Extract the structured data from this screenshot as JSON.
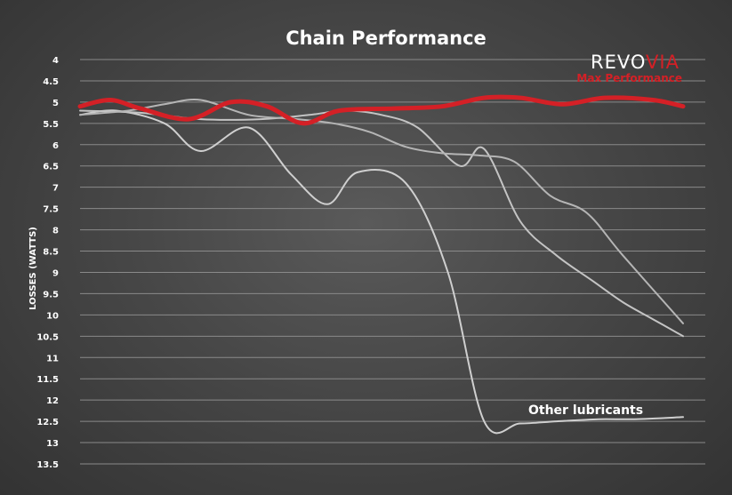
{
  "chart_data": {
    "type": "line",
    "title": "Chain Performance",
    "ylabel": "LOSSES (WATTS)",
    "xlabel": "",
    "ylim": [
      4,
      13.5
    ],
    "y_inverted": true,
    "y_ticks": [
      "4",
      "4.5",
      "5",
      "5.5",
      "6",
      "6.5",
      "7",
      "7.5",
      "8",
      "8.5",
      "9",
      "9.5",
      "10",
      "10.5",
      "11",
      "11.5",
      "12",
      "12.5",
      "13",
      "13.5"
    ],
    "grid": true,
    "legend": "none",
    "x_range": [
      0,
      100
    ],
    "series": [
      {
        "color": "#d42026",
        "x": [
          0,
          5,
          10,
          18,
          25,
          31,
          37,
          43,
          52,
          60,
          67,
          73,
          80,
          87,
          95,
          100
        ],
        "y": [
          5.1,
          4.95,
          5.15,
          5.4,
          5.0,
          5.1,
          5.5,
          5.2,
          5.15,
          5.1,
          4.9,
          4.9,
          5.05,
          4.9,
          4.95,
          5.1
        ]
      },
      {
        "color": "#cfcfcf",
        "x": [
          0,
          6,
          14,
          20,
          28,
          35,
          41,
          46,
          54,
          61,
          67,
          73,
          79,
          86,
          92,
          100
        ],
        "y": [
          5.3,
          5.2,
          5.5,
          6.15,
          5.6,
          6.7,
          7.4,
          6.65,
          6.9,
          9.0,
          12.5,
          12.55,
          12.5,
          12.45,
          12.45,
          12.4
        ]
      },
      {
        "color": "#c4c4c4",
        "x": [
          0,
          10,
          20,
          30,
          38,
          44,
          50,
          56,
          63,
          67,
          73,
          79,
          85,
          90,
          95,
          100
        ],
        "y": [
          5.2,
          5.25,
          5.4,
          5.4,
          5.3,
          5.2,
          5.3,
          5.6,
          6.5,
          6.1,
          7.8,
          8.6,
          9.2,
          9.7,
          10.1,
          10.5
        ]
      },
      {
        "color": "#b5b5b5",
        "x": [
          0,
          8,
          14,
          20,
          28,
          36,
          42,
          48,
          54,
          60,
          66,
          72,
          78,
          84,
          90,
          100
        ],
        "y": [
          5.3,
          5.2,
          5.05,
          4.95,
          5.3,
          5.4,
          5.5,
          5.7,
          6.05,
          6.2,
          6.25,
          6.4,
          7.2,
          7.6,
          8.6,
          10.2
        ]
      }
    ],
    "annotations": [
      {
        "text": "Other lubricants"
      }
    ]
  },
  "brand": {
    "name_part1": "REVO",
    "name_part2": "VIA",
    "tagline": "Max Performance",
    "color_white": "#ffffff",
    "color_red": "#d42026"
  }
}
